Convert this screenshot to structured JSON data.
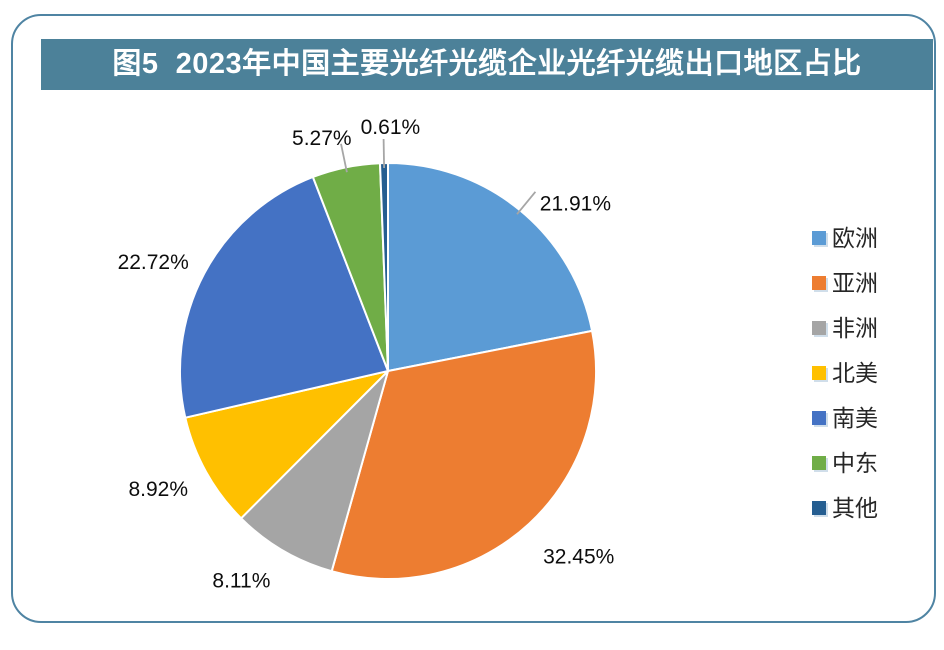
{
  "figure": {
    "title": "图5  2023年中国主要光纤光缆企业光纤光缆出口地区占比"
  },
  "chart_data": {
    "type": "pie",
    "title": "图5  2023年中国主要光纤光缆企业光纤光缆出口地区占比",
    "legend_position": "right",
    "start_angle_deg": 0,
    "direction": "clockwise",
    "data_label_format": "0.00%",
    "categories": [
      "欧洲",
      "亚洲",
      "非洲",
      "北美",
      "南美",
      "中东",
      "其他"
    ],
    "values": [
      21.91,
      32.45,
      8.11,
      8.92,
      22.72,
      5.27,
      0.61
    ],
    "slices": [
      {
        "label": "欧洲",
        "value": 21.91,
        "display": "21.91%",
        "color": "#5B9BD5"
      },
      {
        "label": "亚洲",
        "value": 32.45,
        "display": "32.45%",
        "color": "#ED7D31"
      },
      {
        "label": "非洲",
        "value": 8.11,
        "display": "8.11%",
        "color": "#A5A5A5"
      },
      {
        "label": "北美",
        "value": 8.92,
        "display": "8.92%",
        "color": "#FFC000"
      },
      {
        "label": "南美",
        "value": 22.72,
        "display": "22.72%",
        "color": "#4472C4"
      },
      {
        "label": "中东",
        "value": 5.27,
        "display": "5.27%",
        "color": "#70AD47"
      },
      {
        "label": "其他",
        "value": 0.61,
        "display": "0.61%",
        "color": "#255E91"
      }
    ],
    "leader_line_slices": [
      "欧洲",
      "中东",
      "其他"
    ]
  },
  "style": {
    "title_bg": "#4C8199",
    "title_text": "#FFFFFF",
    "card_border": "#4F84A3",
    "leader_line": "#A6A6A6",
    "data_label_color": "#0D0D0D",
    "legend_text": "#262626",
    "slice_stroke": "#FFFFFF"
  }
}
